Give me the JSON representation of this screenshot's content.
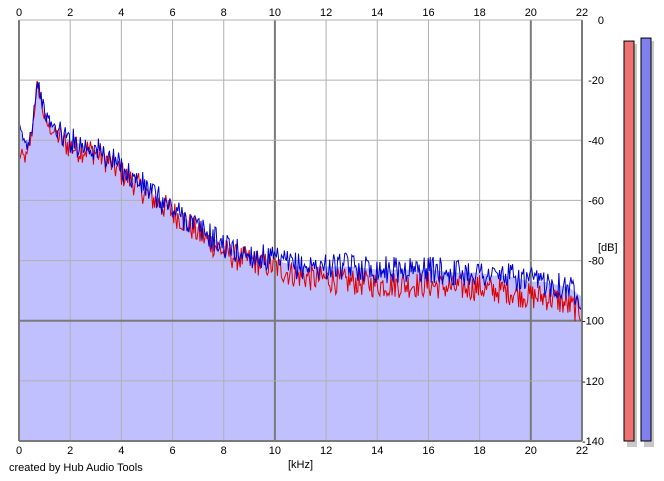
{
  "credit": "created by Hub Audio Tools",
  "chart_data": {
    "type": "area",
    "xlabel": "[kHz]",
    "ylabel": "[dB]",
    "xlim": [
      0,
      22
    ],
    "ylim": [
      -140,
      0
    ],
    "x_ticks": [
      "0",
      "2",
      "4",
      "6",
      "8",
      "10",
      "12",
      "14",
      "16",
      "18",
      "20",
      "22"
    ],
    "y_ticks": [
      "0",
      "-20",
      "-40",
      "-60",
      "-80",
      "-100",
      "-120",
      "-140"
    ],
    "grid": true,
    "area_color": "#c0c0ff",
    "series": [
      {
        "color": "#e00000",
        "x": [
          0,
          0.3,
          0.5,
          0.7,
          0.8,
          1.0,
          1.2,
          1.5,
          1.8,
          2.0,
          2.3,
          2.6,
          3.0,
          3.5,
          4.0,
          4.5,
          5.0,
          5.5,
          6.0,
          6.5,
          7.0,
          7.5,
          8.0,
          8.5,
          9.0,
          9.5,
          10.0,
          10.5,
          11.0,
          11.5,
          12.0,
          12.5,
          13.0,
          14.0,
          15.0,
          16.0,
          17.0,
          18.0,
          18.5,
          19.0,
          19.5,
          20.0,
          20.5,
          21.0,
          21.5,
          22.0
        ],
        "y": [
          -45,
          -46,
          -38,
          -22,
          -24,
          -33,
          -36,
          -38,
          -41,
          -42,
          -43,
          -43,
          -44,
          -47,
          -51,
          -54,
          -58,
          -61,
          -64,
          -67,
          -71,
          -74,
          -77,
          -79,
          -80,
          -81,
          -82,
          -84,
          -85,
          -86,
          -86,
          -87,
          -87,
          -88,
          -88,
          -88,
          -89,
          -89,
          -90,
          -90,
          -91,
          -92,
          -92,
          -93,
          -95,
          -97
        ]
      },
      {
        "color": "#0000d0",
        "x": [
          0,
          0.3,
          0.5,
          0.7,
          0.8,
          1.0,
          1.2,
          1.5,
          1.8,
          2.0,
          2.3,
          2.6,
          3.0,
          3.5,
          4.0,
          4.5,
          5.0,
          5.5,
          6.0,
          6.5,
          7.0,
          7.5,
          8.0,
          8.5,
          9.0,
          9.5,
          10.0,
          10.5,
          11.0,
          11.5,
          12.0,
          12.5,
          13.0,
          14.0,
          15.0,
          16.0,
          17.0,
          18.0,
          18.5,
          19.0,
          19.5,
          20.0,
          20.5,
          21.0,
          21.5,
          22.0
        ],
        "y": [
          -36,
          -42,
          -36,
          -21,
          -23,
          -31,
          -34,
          -37,
          -39,
          -40,
          -41,
          -42,
          -43,
          -46,
          -49,
          -53,
          -56,
          -60,
          -63,
          -66,
          -69,
          -72,
          -75,
          -77,
          -78,
          -79,
          -80,
          -81,
          -82,
          -82,
          -82,
          -82,
          -82,
          -83,
          -83,
          -83,
          -84,
          -84,
          -85,
          -85,
          -86,
          -87,
          -87,
          -88,
          -89,
          -92
        ]
      }
    ],
    "level_meters": [
      {
        "color": "#ee7272",
        "value_db": -7
      },
      {
        "color": "#8080ee",
        "value_db": -6
      }
    ]
  }
}
